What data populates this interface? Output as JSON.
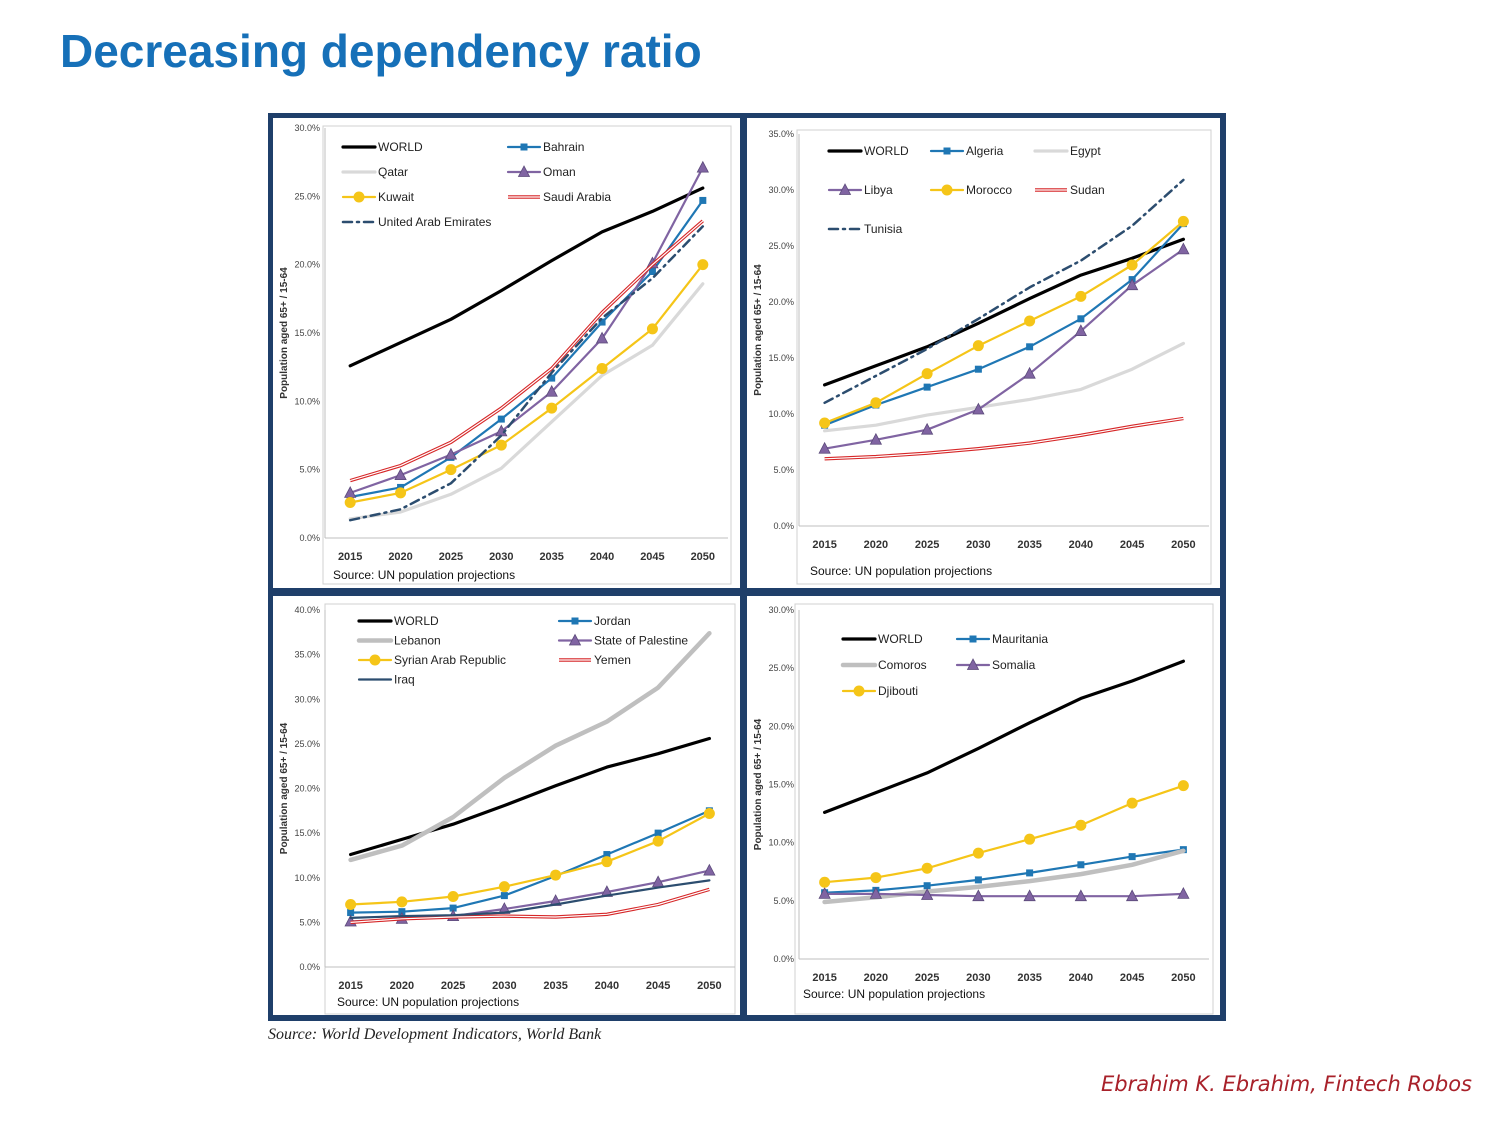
{
  "page": {
    "title": "Decreasing dependency ratio",
    "source_note": "Source: World Development Indicators, World Bank",
    "author": "Ebrahim K. Ebrahim, Fintech Robos"
  },
  "colors": {
    "frame": "#1f3f6a",
    "title": "#1670b8",
    "author": "#a8212a"
  },
  "chart_data": [
    {
      "type": "line",
      "panel": "gcc",
      "ylabel": "Population aged 65+ / 15-64",
      "source": "Source: UN population projections",
      "ylim": [
        0,
        30
      ],
      "yticks": [
        0,
        5,
        10,
        15,
        20,
        25,
        30
      ],
      "ytick_labels": [
        "0.0%",
        "5.0%",
        "10.0%",
        "15.0%",
        "20.0%",
        "25.0%",
        "30.0%"
      ],
      "categories": [
        "2015",
        "2020",
        "2025",
        "2030",
        "2035",
        "2040",
        "2045",
        "2050"
      ],
      "legend_position": "top-left",
      "series": [
        {
          "name": "WORLD",
          "color": "#000000",
          "style": "solid",
          "marker": "none",
          "values": [
            12.6,
            14.3,
            16.0,
            18.1,
            20.3,
            22.4,
            23.9,
            25.6
          ]
        },
        {
          "name": "Bahrain",
          "color": "#1f77b4",
          "style": "solid",
          "marker": "square",
          "values": [
            3.0,
            3.7,
            5.9,
            8.7,
            11.7,
            15.8,
            19.5,
            24.7
          ]
        },
        {
          "name": "Qatar",
          "color": "#d9d9d9",
          "style": "solid",
          "marker": "none",
          "values": [
            1.4,
            1.9,
            3.2,
            5.1,
            8.5,
            11.9,
            14.1,
            18.6
          ]
        },
        {
          "name": "Oman",
          "color": "#8064a2",
          "style": "solid",
          "marker": "triangle",
          "values": [
            3.3,
            4.6,
            6.1,
            7.8,
            10.7,
            14.6,
            20.1,
            27.1
          ]
        },
        {
          "name": "Kuwait",
          "color": "#f5c518",
          "style": "solid",
          "marker": "circle",
          "values": [
            2.6,
            3.3,
            5.0,
            6.8,
            9.5,
            12.4,
            15.3,
            20.0
          ]
        },
        {
          "name": "Saudi Arabia",
          "color": "#d62728",
          "style": "double",
          "marker": "none",
          "values": [
            4.2,
            5.3,
            7.0,
            9.5,
            12.4,
            16.5,
            20.0,
            23.2
          ]
        },
        {
          "name": "United Arab Emirates",
          "color": "#2c4d6f",
          "style": "dashdot",
          "marker": "none",
          "values": [
            1.3,
            2.1,
            4.0,
            7.5,
            12.1,
            16.1,
            19.0,
            22.8
          ]
        }
      ]
    },
    {
      "type": "line",
      "panel": "north-africa",
      "ylabel": "Population aged 65+ / 15-64",
      "source": "Source: UN population projections",
      "ylim": [
        0,
        35
      ],
      "yticks": [
        0,
        5,
        10,
        15,
        20,
        25,
        30,
        35
      ],
      "ytick_labels": [
        "0.0%",
        "5.0%",
        "10.0%",
        "15.0%",
        "20.0%",
        "25.0%",
        "30.0%",
        "35.0%"
      ],
      "categories": [
        "2015",
        "2020",
        "2025",
        "2030",
        "2035",
        "2040",
        "2045",
        "2050"
      ],
      "legend_position": "top-left",
      "series": [
        {
          "name": "WORLD",
          "color": "#000000",
          "style": "solid",
          "marker": "none",
          "values": [
            12.6,
            14.3,
            16.0,
            18.1,
            20.3,
            22.4,
            23.9,
            25.6
          ]
        },
        {
          "name": "Algeria",
          "color": "#1f77b4",
          "style": "solid",
          "marker": "square",
          "values": [
            9.0,
            10.8,
            12.4,
            14.0,
            16.0,
            18.5,
            22.0,
            27.0
          ]
        },
        {
          "name": "Egypt",
          "color": "#d9d9d9",
          "style": "solid",
          "marker": "none",
          "values": [
            8.5,
            9.0,
            9.9,
            10.6,
            11.3,
            12.2,
            14.0,
            16.3
          ]
        },
        {
          "name": "Libya",
          "color": "#8064a2",
          "style": "solid",
          "marker": "triangle",
          "values": [
            6.9,
            7.7,
            8.6,
            10.4,
            13.6,
            17.4,
            21.5,
            24.7
          ]
        },
        {
          "name": "Morocco",
          "color": "#f5c518",
          "style": "solid",
          "marker": "circle",
          "values": [
            9.2,
            11.0,
            13.6,
            16.1,
            18.3,
            20.5,
            23.3,
            27.2
          ]
        },
        {
          "name": "Sudan",
          "color": "#d62728",
          "style": "double",
          "marker": "none",
          "values": [
            6.0,
            6.2,
            6.5,
            6.9,
            7.4,
            8.1,
            8.9,
            9.6
          ]
        },
        {
          "name": "Tunisia",
          "color": "#2c4d6f",
          "style": "dashdot",
          "marker": "none",
          "values": [
            11.0,
            13.4,
            15.8,
            18.5,
            21.3,
            23.7,
            26.8,
            30.9
          ]
        }
      ]
    },
    {
      "type": "line",
      "panel": "levant",
      "ylabel": "Population aged 65+ / 15-64",
      "source": "Source: UN population projections",
      "ylim": [
        0,
        40
      ],
      "yticks": [
        0,
        5,
        10,
        15,
        20,
        25,
        30,
        35,
        40
      ],
      "ytick_labels": [
        "0.0%",
        "5.0%",
        "10.0%",
        "15.0%",
        "20.0%",
        "25.0%",
        "30.0%",
        "35.0%",
        "40.0%"
      ],
      "categories": [
        "2015",
        "2020",
        "2025",
        "2030",
        "2035",
        "2040",
        "2045",
        "2050"
      ],
      "legend_position": "top-left",
      "series": [
        {
          "name": "WORLD",
          "color": "#000000",
          "style": "solid",
          "marker": "none",
          "values": [
            12.6,
            14.3,
            16.0,
            18.1,
            20.3,
            22.4,
            23.9,
            25.6
          ]
        },
        {
          "name": "Jordan",
          "color": "#1f77b4",
          "style": "solid",
          "marker": "square",
          "values": [
            6.1,
            6.2,
            6.6,
            8.0,
            10.2,
            12.6,
            15.0,
            17.5
          ]
        },
        {
          "name": "Lebanon",
          "color": "#bfbfbf",
          "style": "thick",
          "marker": "none",
          "values": [
            12.0,
            13.6,
            16.8,
            21.2,
            24.8,
            27.5,
            31.3,
            37.4
          ]
        },
        {
          "name": "State of Palestine",
          "color": "#8064a2",
          "style": "solid",
          "marker": "triangle",
          "values": [
            5.1,
            5.4,
            5.7,
            6.5,
            7.4,
            8.4,
            9.5,
            10.8
          ]
        },
        {
          "name": "Syrian Arab Republic",
          "color": "#f5c518",
          "style": "solid",
          "marker": "circle",
          "values": [
            7.0,
            7.3,
            7.9,
            9.0,
            10.3,
            11.8,
            14.1,
            17.2
          ]
        },
        {
          "name": "Yemen",
          "color": "#d62728",
          "style": "double",
          "marker": "none",
          "values": [
            5.0,
            5.4,
            5.6,
            5.7,
            5.6,
            5.9,
            7.0,
            8.7
          ]
        },
        {
          "name": "Iraq",
          "color": "#2c4d6f",
          "style": "solid",
          "marker": "none",
          "values": [
            5.5,
            5.7,
            5.8,
            6.1,
            7.0,
            8.0,
            8.9,
            9.7
          ]
        }
      ]
    },
    {
      "type": "line",
      "panel": "others",
      "ylabel": "Population aged 65+ / 15-64",
      "source": "Source: UN population projections",
      "ylim": [
        0,
        30
      ],
      "yticks": [
        0,
        5,
        10,
        15,
        20,
        25,
        30
      ],
      "ytick_labels": [
        "0.0%",
        "5.0%",
        "10.0%",
        "15.0%",
        "20.0%",
        "25.0%",
        "30.0%"
      ],
      "categories": [
        "2015",
        "2020",
        "2025",
        "2030",
        "2035",
        "2040",
        "2045",
        "2050"
      ],
      "legend_position": "top-left",
      "series": [
        {
          "name": "WORLD",
          "color": "#000000",
          "style": "solid",
          "marker": "none",
          "values": [
            12.6,
            14.3,
            16.0,
            18.1,
            20.3,
            22.4,
            23.9,
            25.6
          ]
        },
        {
          "name": "Mauritania",
          "color": "#1f77b4",
          "style": "solid",
          "marker": "square",
          "values": [
            5.7,
            5.9,
            6.3,
            6.8,
            7.4,
            8.1,
            8.8,
            9.4
          ]
        },
        {
          "name": "Comoros",
          "color": "#bfbfbf",
          "style": "thick",
          "marker": "none",
          "values": [
            4.9,
            5.3,
            5.8,
            6.2,
            6.7,
            7.3,
            8.1,
            9.3
          ]
        },
        {
          "name": "Somalia",
          "color": "#8064a2",
          "style": "solid",
          "marker": "triangle",
          "values": [
            5.6,
            5.6,
            5.5,
            5.4,
            5.4,
            5.4,
            5.4,
            5.6
          ]
        },
        {
          "name": "Djibouti",
          "color": "#f5c518",
          "style": "solid",
          "marker": "circle",
          "values": [
            6.6,
            7.0,
            7.8,
            9.1,
            10.3,
            11.5,
            13.4,
            14.9
          ]
        }
      ]
    }
  ]
}
